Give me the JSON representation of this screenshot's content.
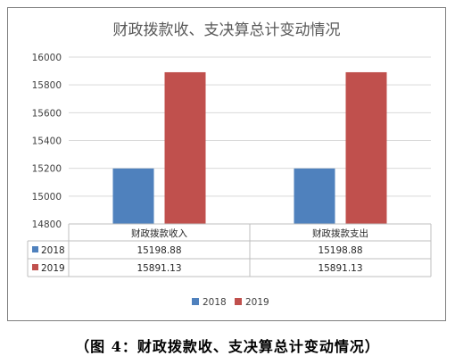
{
  "caption": "（图 4：财政拨款收、支决算总计变动情况）",
  "chart_data": {
    "type": "bar",
    "title": "财政拨款收、支决算总计变动情况",
    "categories": [
      "财政拨款收入",
      "财政拨款支出"
    ],
    "series": [
      {
        "name": "2018",
        "values": [
          15198.88,
          15198.88
        ],
        "labels": [
          "15198.88",
          "15198.88"
        ],
        "color": "#4f81bd"
      },
      {
        "name": "2019",
        "values": [
          15891.13,
          15891.13
        ],
        "labels": [
          "15891.13",
          "15891.13"
        ],
        "color": "#c0504d"
      }
    ],
    "ylim": [
      14800,
      16000
    ],
    "yticks": [
      14800,
      15000,
      15200,
      15400,
      15600,
      15800,
      16000
    ],
    "grid": true,
    "data_table": true,
    "legend": "bottom",
    "xlabel": "",
    "ylabel": ""
  }
}
